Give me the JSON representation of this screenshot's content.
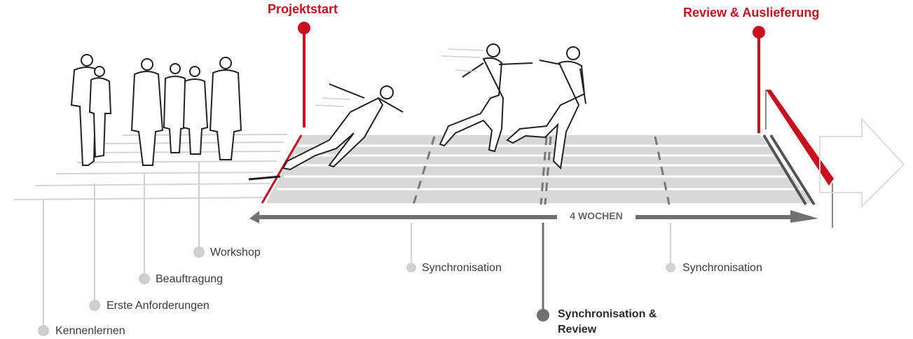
{
  "milestones": {
    "start": "Projektstart",
    "end": "Review & Auslieferung"
  },
  "duration": "4 WOCHEN",
  "phases": {
    "kennenlernen": "Kennenlernen",
    "anforderungen": "Erste Anforderungen",
    "beauftragung": "Beauftragung",
    "workshop": "Workshop"
  },
  "syncs": {
    "sync1": "Synchronisation",
    "review_line1": "Synchronisation &",
    "review_line2": "Review",
    "sync2": "Synchronisation"
  },
  "colors": {
    "accent": "#c8101e",
    "track": "#d6d6d6",
    "line": "#bdbdbd",
    "dark": "#666666"
  }
}
